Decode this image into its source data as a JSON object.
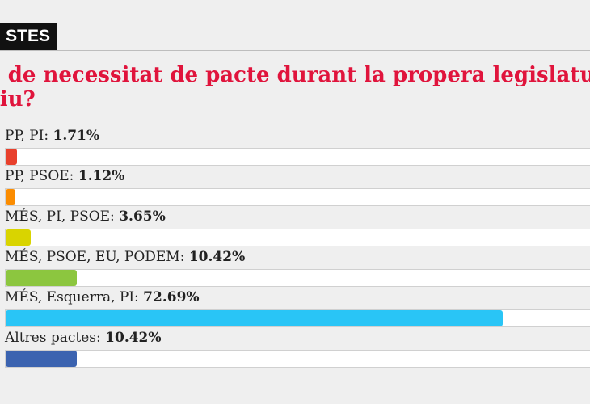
{
  "header": {
    "tag": "STES"
  },
  "question": {
    "line1": "s de necessitat de pacte durant la propera legislatur",
    "line2": "riu?"
  },
  "options": [
    {
      "label": "PP, PI:",
      "percent": "1.71%",
      "value": 1.71,
      "color": "#e8402c"
    },
    {
      "label": "PP, PSOE:",
      "percent": "1.12%",
      "value": 1.12,
      "color": "#fb8c00"
    },
    {
      "label": "MÉS, PI, PSOE:",
      "percent": "3.65%",
      "value": 3.65,
      "color": "#d9d400"
    },
    {
      "label": "MÉS, PSOE, EU, PODEM:",
      "percent": "10.42%",
      "value": 10.42,
      "color": "#8cc63f"
    },
    {
      "label": "MÉS, Esquerra, PI:",
      "percent": "72.69%",
      "value": 72.69,
      "color": "#29c5f6"
    },
    {
      "label": "Altres pactes:",
      "percent": "10.42%",
      "value": 10.42,
      "color": "#3b63b0"
    }
  ]
}
